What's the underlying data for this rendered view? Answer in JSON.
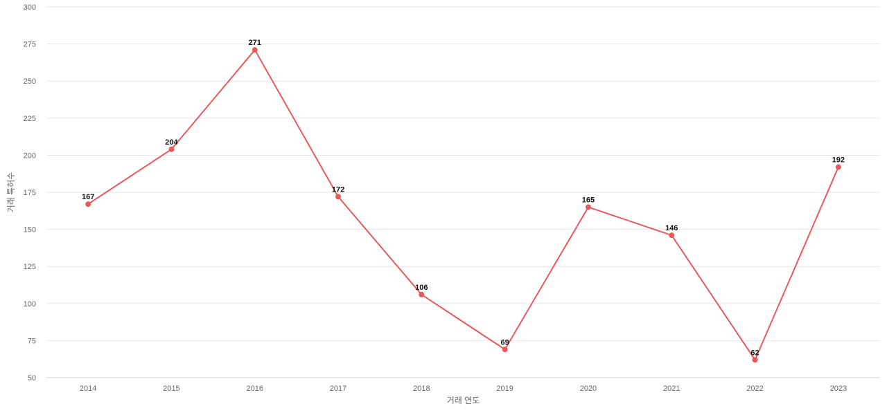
{
  "chart_data": {
    "type": "line",
    "title": "",
    "xlabel": "거래 연도",
    "ylabel": "거래 특허수",
    "x": [
      "2014",
      "2015",
      "2016",
      "2017",
      "2018",
      "2019",
      "2020",
      "2021",
      "2022",
      "2023"
    ],
    "series": [
      {
        "values": [
          167,
          204,
          271,
          172,
          106,
          69,
          165,
          146,
          62,
          192
        ],
        "color": "#e85a5a"
      }
    ],
    "ylim": [
      50,
      300
    ],
    "yticks": [
      50,
      75,
      100,
      125,
      150,
      175,
      200,
      225,
      250,
      275,
      300
    ],
    "grid": true,
    "legend": "none",
    "data_labels": true
  }
}
